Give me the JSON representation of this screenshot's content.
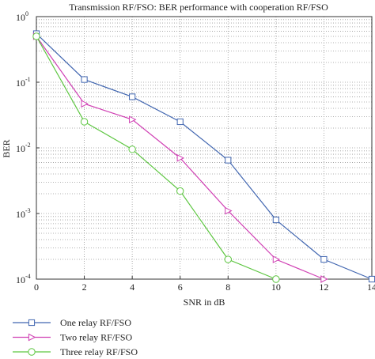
{
  "chart_data": {
    "type": "line",
    "title": "Transmission RF/FSO: BER performance with cooperation RF/FSO",
    "xlabel": "SNR in dB",
    "ylabel": "BER",
    "x_ticks": [
      0,
      2,
      4,
      6,
      8,
      10,
      12,
      14
    ],
    "xlim": [
      0,
      14
    ],
    "ylim": [
      0.0001,
      1
    ],
    "y_scale": "log",
    "y_ticks": [
      {
        "value": 1,
        "label": "10",
        "exp": "0"
      },
      {
        "value": 0.1,
        "label": "10",
        "exp": "-1"
      },
      {
        "value": 0.01,
        "label": "10",
        "exp": "-2"
      },
      {
        "value": 0.001,
        "label": "10",
        "exp": "-3"
      },
      {
        "value": 0.0001,
        "label": "10",
        "exp": "-4"
      }
    ],
    "grid": true,
    "legend_position": "bottom, below plot",
    "series": [
      {
        "name": "One relay RF/FSO",
        "color": "#4166b0",
        "marker": "square",
        "x": [
          0,
          2,
          4,
          6,
          8,
          10,
          12,
          14
        ],
        "y": [
          0.55,
          0.11,
          0.06,
          0.025,
          0.0065,
          0.0008,
          0.0002,
          0.0001
        ]
      },
      {
        "name": "Two relay RF/FSO",
        "color": "#d040b4",
        "marker": "triangle-right",
        "x": [
          0,
          2,
          4,
          6,
          8,
          10,
          12
        ],
        "y": [
          0.5,
          0.047,
          0.027,
          0.007,
          0.0011,
          0.0002,
          0.0001
        ]
      },
      {
        "name": "Three relay RF/FSO",
        "color": "#5dc641",
        "marker": "circle",
        "x": [
          0,
          2,
          4,
          6,
          8,
          10
        ],
        "y": [
          0.5,
          0.025,
          0.0095,
          0.0022,
          0.0002,
          0.0001
        ]
      }
    ]
  }
}
